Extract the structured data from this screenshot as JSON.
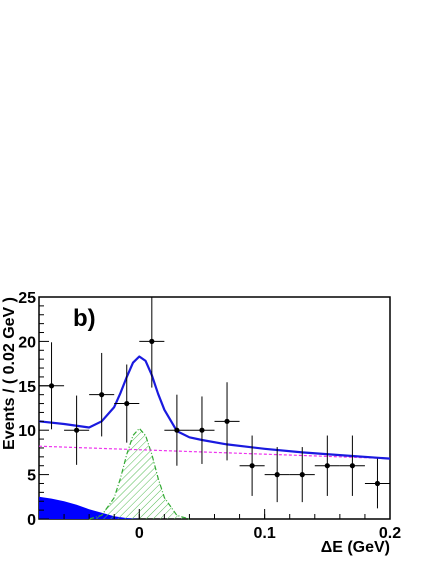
{
  "chart_data": {
    "type": "scatter",
    "panel_label": "b)",
    "xlabel": "ΔE (GeV)",
    "ylabel": "Events / ( 0.02 GeV )",
    "xlim": [
      -0.08,
      0.2
    ],
    "ylim": [
      0,
      25
    ],
    "x_ticks": [
      0,
      0.1,
      0.2
    ],
    "x_tick_labels": [
      "0",
      "0.1",
      "0.2"
    ],
    "y_ticks": [
      0,
      5,
      10,
      15,
      20,
      25
    ],
    "y_tick_labels": [
      "0",
      "5",
      "10",
      "15",
      "20",
      "25"
    ],
    "grid": false,
    "series": [
      {
        "kind": "data-points",
        "color": "#000000",
        "x": [
          -0.07,
          -0.05,
          -0.03,
          -0.01,
          0.01,
          0.03,
          0.05,
          0.07,
          0.09,
          0.11,
          0.13,
          0.15,
          0.17,
          0.19
        ],
        "y": [
          15,
          10,
          14,
          13,
          20,
          10,
          10,
          11,
          6,
          5,
          5,
          6,
          6,
          4
        ],
        "x_err": [
          0.01,
          0.01,
          0.01,
          0.01,
          0.01,
          0.01,
          0.01,
          0.01,
          0.01,
          0.01,
          0.01,
          0.01,
          0.01,
          0.01
        ],
        "y_err": [
          4.9,
          3.9,
          4.7,
          4.4,
          5.2,
          4.0,
          3.8,
          4.4,
          3.4,
          3.1,
          3.1,
          3.4,
          3.4,
          2.8
        ]
      },
      {
        "kind": "total-fit",
        "color": "#1a1adf",
        "x": [
          -0.08,
          -0.06,
          -0.04,
          -0.03,
          -0.02,
          -0.015,
          -0.01,
          -0.005,
          0,
          0.005,
          0.01,
          0.015,
          0.02,
          0.03,
          0.04,
          0.05,
          0.07,
          0.1,
          0.13,
          0.16,
          0.2
        ],
        "y": [
          11.0,
          10.7,
          10.3,
          11.0,
          12.6,
          14.2,
          16.0,
          17.6,
          18.3,
          17.8,
          16.2,
          14.1,
          12.3,
          9.9,
          9.2,
          8.9,
          8.4,
          7.9,
          7.5,
          7.2,
          6.8
        ]
      },
      {
        "kind": "background",
        "color": "#ee33ee",
        "x": [
          -0.08,
          0.2
        ],
        "y": [
          8.2,
          6.8
        ]
      },
      {
        "kind": "signal",
        "color": "#33aa33",
        "x": [
          -0.04,
          -0.03,
          -0.02,
          -0.015,
          -0.01,
          -0.005,
          0,
          0.005,
          0.01,
          0.015,
          0.02,
          0.03,
          0.04
        ],
        "y": [
          0.0,
          0.4,
          2.4,
          4.6,
          7.3,
          9.4,
          10.2,
          9.4,
          7.3,
          4.6,
          2.4,
          0.4,
          0.0
        ]
      },
      {
        "kind": "peaking",
        "color": "#0000ff",
        "x": [
          -0.08,
          -0.07,
          -0.06,
          -0.05,
          -0.04,
          -0.03,
          -0.02,
          -0.01,
          0.0
        ],
        "y": [
          2.5,
          2.3,
          2.0,
          1.6,
          1.1,
          0.7,
          0.3,
          0.1,
          0.0
        ]
      }
    ]
  }
}
